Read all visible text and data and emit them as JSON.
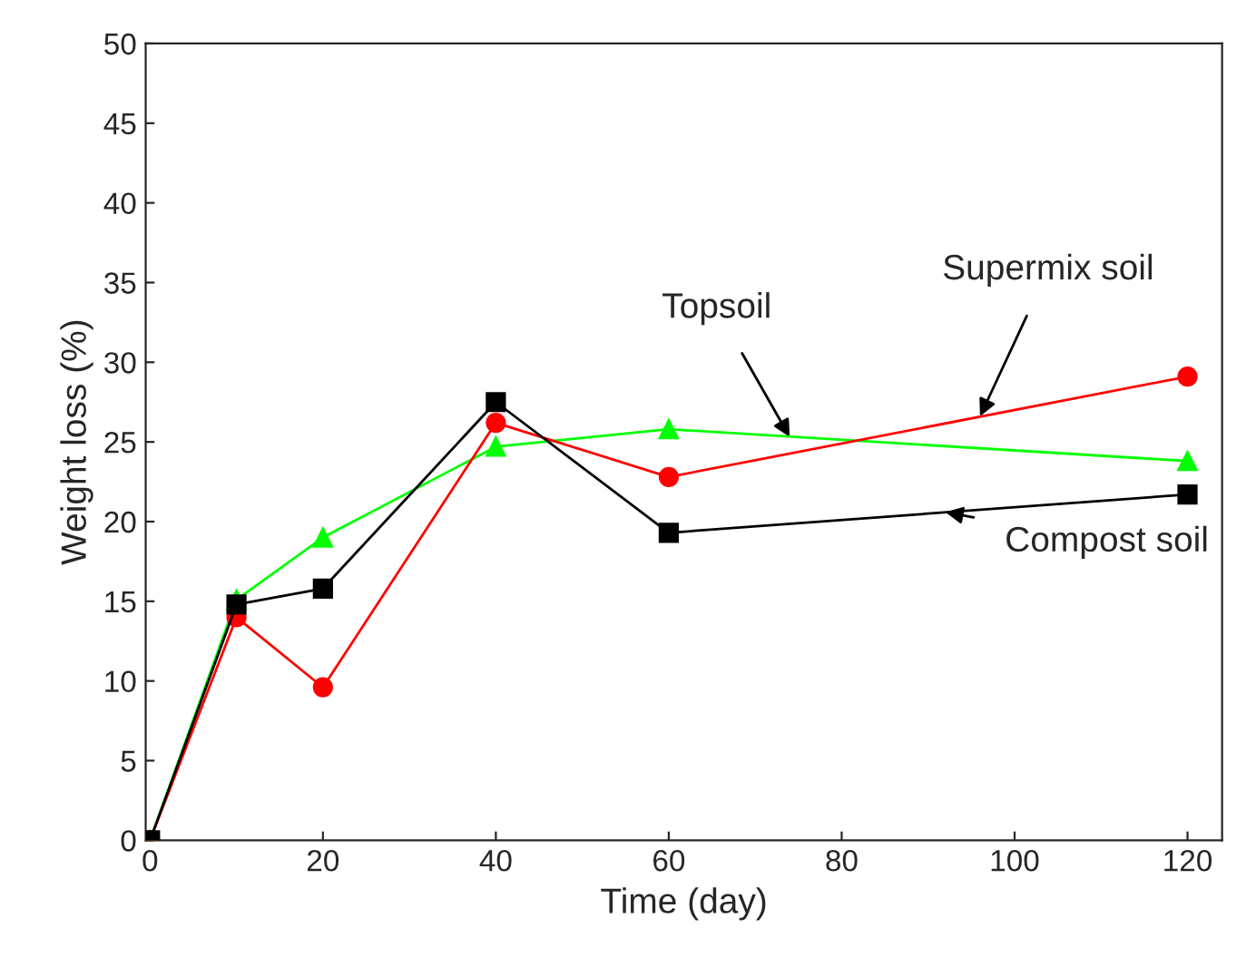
{
  "chart_data": {
    "type": "line",
    "xlabel": "Time (day)",
    "ylabel": "Weight loss (%)",
    "xlim": [
      -0.5,
      124
    ],
    "ylim": [
      0,
      50
    ],
    "xticks": [
      0,
      20,
      40,
      60,
      80,
      100,
      120
    ],
    "yticks": [
      0,
      5,
      10,
      15,
      20,
      25,
      30,
      35,
      40,
      45,
      50
    ],
    "grid": false,
    "legend": false,
    "series": [
      {
        "color": "#000000",
        "marker": "square",
        "x": [
          0,
          10,
          20,
          40,
          60,
          120
        ],
        "values": [
          0,
          14.8,
          15.8,
          27.5,
          19.3,
          21.7
        ]
      },
      {
        "color": "#ff0000",
        "marker": "circle",
        "x": [
          0,
          10,
          20,
          40,
          60,
          120
        ],
        "values": [
          0,
          14.0,
          9.6,
          26.2,
          22.8,
          29.1
        ]
      },
      {
        "color": "#00ff00",
        "marker": "triangle",
        "x": [
          0,
          10,
          20,
          40,
          60,
          120
        ],
        "values": [
          0,
          15.1,
          19.0,
          24.7,
          25.8,
          23.8
        ]
      }
    ],
    "annotations": [
      {
        "text": "Topsoil",
        "x": 74,
        "y": 25.3
      },
      {
        "text": "Supermix soil",
        "x": 96,
        "y": 26.6
      },
      {
        "text": "Compost soil",
        "x": 92,
        "y": 20.6
      }
    ]
  }
}
